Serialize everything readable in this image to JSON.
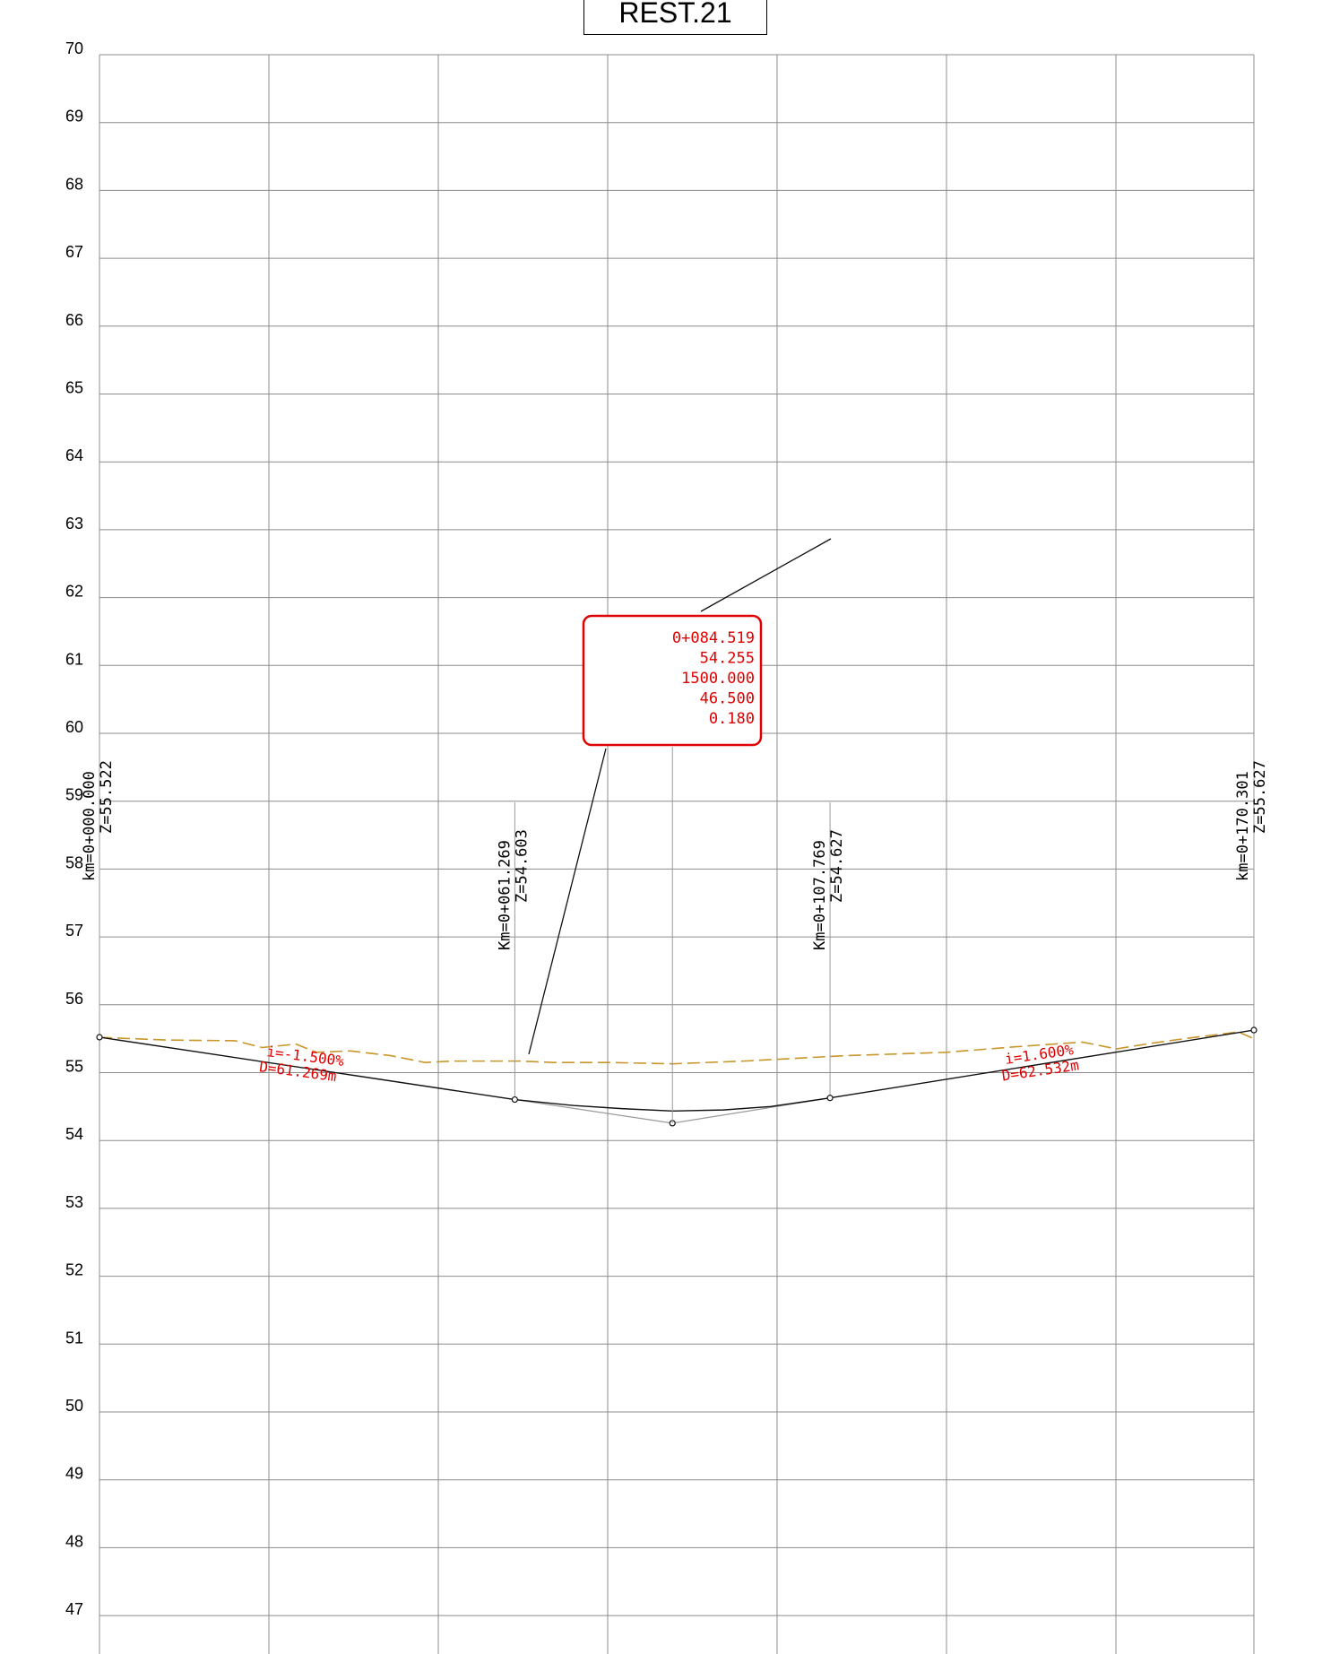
{
  "chart_data": {
    "type": "line",
    "title": "REST.21",
    "ylim": [
      46.5,
      70
    ],
    "xlim": [
      0,
      170.301
    ],
    "y_ticks": [
      70,
      69,
      68,
      67,
      66,
      65,
      64,
      63,
      62,
      61,
      60,
      59,
      58,
      57,
      56,
      55,
      54,
      53,
      52,
      51,
      50,
      49,
      48,
      47
    ],
    "grid": true,
    "series": [
      {
        "name": "",
        "style": "solid-black",
        "x": [
          0,
          61.269,
          70,
          77,
          84.519,
          92,
          99,
          107.769,
          170.301
        ],
        "y": [
          55.522,
          54.603,
          54.515,
          54.47,
          54.435,
          54.45,
          54.5,
          54.627,
          55.627
        ]
      },
      {
        "name": "",
        "style": "thin-gray",
        "x": [
          61.269,
          84.519,
          107.769
        ],
        "y": [
          54.603,
          54.255,
          54.627
        ]
      },
      {
        "name": "",
        "style": "dashed-brown",
        "x": [
          0,
          10,
          20,
          24,
          29,
          32,
          37,
          43,
          48,
          52,
          57,
          62,
          67,
          75,
          84.519,
          95,
          110,
          125,
          135,
          145,
          150,
          155,
          160,
          168,
          170.301
        ],
        "y": [
          55.52,
          55.48,
          55.47,
          55.37,
          55.42,
          55.3,
          55.32,
          55.25,
          55.15,
          55.17,
          55.17,
          55.17,
          55.15,
          55.15,
          55.13,
          55.17,
          55.25,
          55.3,
          55.38,
          55.45,
          55.35,
          55.43,
          55.5,
          55.6,
          55.5
        ]
      }
    ],
    "vertices": [
      {
        "x": 0,
        "y": 55.522,
        "label_km": "km=0+000.000",
        "label_z": "Z=55.522"
      },
      {
        "x": 61.269,
        "y": 54.603,
        "label_km": "Km=0+061.269",
        "label_z": "Z=54.603"
      },
      {
        "x": 84.519,
        "y": 54.255
      },
      {
        "x": 107.769,
        "y": 54.627,
        "label_km": "Km=0+107.769",
        "label_z": "Z=54.627"
      },
      {
        "x": 170.301,
        "y": 55.627,
        "label_km": "km=0+170.301",
        "label_z": "Z=55.627"
      }
    ],
    "annotations": [
      {
        "slope": "i=-1.500%",
        "distance": "D=61.269m"
      },
      {
        "slope": "i=1.600%",
        "distance": "D=62.532m"
      }
    ],
    "curve_box": [
      "0+084.519",
      "54.255",
      "1500.000",
      "46.500",
      "0.180"
    ]
  }
}
